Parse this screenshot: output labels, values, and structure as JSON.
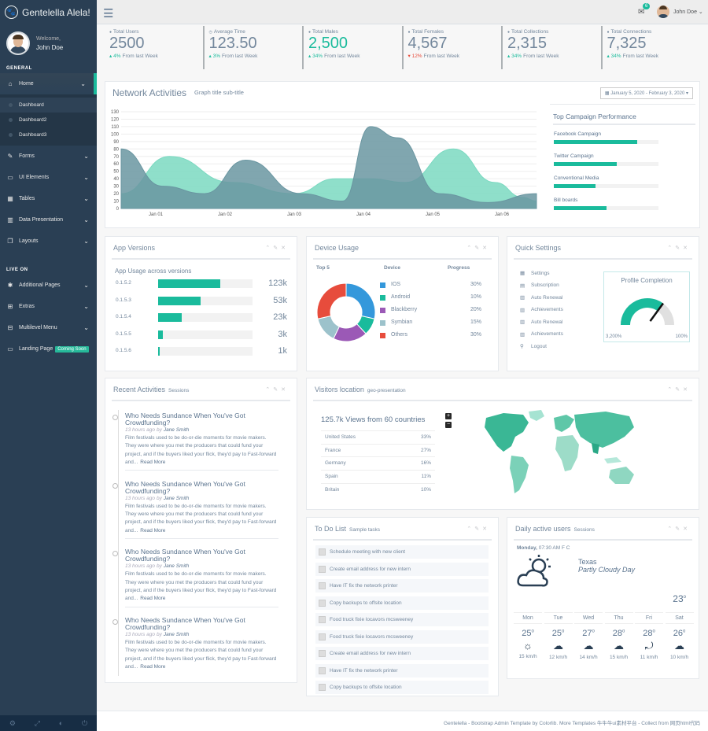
{
  "brand": {
    "title": "Gentelella Alela!"
  },
  "profile": {
    "welcome": "Welcome,",
    "name": "John Doe"
  },
  "nav": {
    "general_label": "GENERAL",
    "items": [
      {
        "label": "Home"
      },
      {
        "label": "Forms"
      },
      {
        "label": "UI Elements"
      },
      {
        "label": "Tables"
      },
      {
        "label": "Data Presentation"
      },
      {
        "label": "Layouts"
      }
    ],
    "home_sub": [
      "Dashboard",
      "Dashboard2",
      "Dashboard3"
    ],
    "live_label": "LIVE ON",
    "live_items": [
      {
        "label": "Additional Pages"
      },
      {
        "label": "Extras"
      },
      {
        "label": "Multilevel Menu"
      },
      {
        "label": "Landing Page"
      }
    ],
    "coming_soon": "Coming Soon"
  },
  "topbar": {
    "mail_count": "6",
    "user": "John Doe"
  },
  "stats": [
    {
      "label": "Total Users",
      "value": "2500",
      "change": "4%",
      "note": "From last Week",
      "dir": "up"
    },
    {
      "label": "Average Time",
      "value": "123.50",
      "change": "3%",
      "note": "From last Week",
      "dir": "up"
    },
    {
      "label": "Total Males",
      "value": "2,500",
      "change": "34%",
      "note": "From last Week",
      "dir": "up"
    },
    {
      "label": "Total Females",
      "value": "4,567",
      "change": "12%",
      "note": "From last Week",
      "dir": "down"
    },
    {
      "label": "Total Collections",
      "value": "2,315",
      "change": "34%",
      "note": "From last Week",
      "dir": "up"
    },
    {
      "label": "Total Connections",
      "value": "7,325",
      "change": "34%",
      "note": "From last Week",
      "dir": "up"
    }
  ],
  "network": {
    "title": "Network Activities",
    "subtitle": "Graph title sub-title",
    "date_range": "January 5, 2020 - February 3, 2020"
  },
  "chart_data": [
    {
      "type": "area",
      "x": [
        "Jan 01",
        "Jan 02",
        "Jan 03",
        "Jan 04",
        "Jan 05",
        "Jan 06"
      ],
      "yticks": [
        0,
        10,
        20,
        30,
        40,
        50,
        60,
        70,
        80,
        90,
        100,
        110,
        120,
        130
      ],
      "ylim": [
        0,
        130
      ],
      "series": [
        {
          "points": [
            [
              0,
              20
            ],
            [
              0.7,
              70
            ],
            [
              1.6,
              35
            ],
            [
              2.5,
              20
            ],
            [
              3.1,
              40
            ],
            [
              3.6,
              40
            ],
            [
              4.1,
              35
            ],
            [
              4.8,
              80
            ],
            [
              5.4,
              35
            ],
            [
              5.8,
              15
            ],
            [
              6.0,
              10
            ]
          ],
          "color": "#7bd9c1"
        },
        {
          "points": [
            [
              0,
              80
            ],
            [
              0.6,
              30
            ],
            [
              1.2,
              20
            ],
            [
              1.8,
              65
            ],
            [
              2.6,
              20
            ],
            [
              3.2,
              10
            ],
            [
              3.6,
              110
            ],
            [
              4.0,
              95
            ],
            [
              4.6,
              20
            ],
            [
              5.3,
              8
            ],
            [
              6.0,
              20
            ]
          ],
          "color": "#6a96a1"
        }
      ]
    },
    {
      "type": "bar",
      "title": "App Usage across versions",
      "categories": [
        "0.1.5.2",
        "0.1.5.3",
        "0.1.5.4",
        "0.1.5.5",
        "0.1.5.6"
      ],
      "values": [
        123,
        53,
        23,
        3,
        1
      ],
      "labels": [
        "123k",
        "53k",
        "23k",
        "3k",
        "1k"
      ],
      "fill_pct": [
        66,
        45,
        25,
        5,
        2
      ]
    },
    {
      "type": "pie",
      "title": "Top 5",
      "categories": [
        "IOS",
        "Android",
        "Blackberry",
        "Symbian",
        "Others"
      ],
      "values": [
        30,
        10,
        20,
        15,
        30
      ],
      "colors": [
        "#3498db",
        "#1abb9c",
        "#9b59b6",
        "#9cc2cb",
        "#e74c3c"
      ]
    }
  ],
  "campaign": {
    "title": "Top Campaign Performance",
    "items": [
      {
        "label": "Facebook Campaign",
        "pct": 80
      },
      {
        "label": "Twitter Campaign",
        "pct": 60
      },
      {
        "label": "Conventional Media",
        "pct": 40
      },
      {
        "label": "Bill boards",
        "pct": 50
      }
    ]
  },
  "app_versions": {
    "title": "App Versions"
  },
  "device": {
    "title": "Device Usage",
    "h_top": "Top 5",
    "h_device": "Device",
    "h_progress": "Progress",
    "pcts": [
      "30%",
      "10%",
      "20%",
      "15%",
      "30%"
    ]
  },
  "quick": {
    "title": "Quick Settings",
    "items": [
      "Settings",
      "Subscription",
      "Auto Renewal",
      "Achievements",
      "Auto Renewal",
      "Achievements",
      "Logout"
    ],
    "profile_title": "Profile Completion",
    "gauge_min": "3,200%",
    "gauge_max": "100%",
    "gauge_value": 0.7
  },
  "recent": {
    "title": "Recent Activities",
    "subtitle": "Sessions",
    "items": [
      {
        "title": "Who Needs Sundance When You've Got Crowdfunding?",
        "time": "13 hours ago",
        "by": "by",
        "author": "Jane Smith",
        "text": "Film festivals used to be do-or-die moments for movie makers. They were where you met the producers that could fund your project, and if the buyers liked your flick, they'd pay to Fast-forward and...",
        "more": "Read More"
      },
      {
        "title": "Who Needs Sundance When You've Got Crowdfunding?",
        "time": "13 hours ago",
        "by": "by",
        "author": "Jane Smith",
        "text": "Film festivals used to be do-or-die moments for movie makers. They were where you met the producers that could fund your project, and if the buyers liked your flick, they'd pay to Fast-forward and...",
        "more": "Read More"
      },
      {
        "title": "Who Needs Sundance When You've Got Crowdfunding?",
        "time": "13 hours ago",
        "by": "by",
        "author": "Jane Smith",
        "text": "Film festivals used to be do-or-die moments for movie makers. They were where you met the producers that could fund your project, and if the buyers liked your flick, they'd pay to Fast-forward and...",
        "more": "Read More"
      },
      {
        "title": "Who Needs Sundance When You've Got Crowdfunding?",
        "time": "13 hours ago",
        "by": "by",
        "author": "Jane Smith",
        "text": "Film festivals used to be do-or-die moments for movie makers. They were where you met the producers that could fund your project, and if the buyers liked your flick, they'd pay to Fast-forward and...",
        "more": "Read More"
      }
    ]
  },
  "visitors": {
    "title": "Visitors location",
    "subtitle": "geo-presentation",
    "headline": "125.7k Views from 60 countries",
    "rows": [
      {
        "country": "United States",
        "pct": "33%"
      },
      {
        "country": "France",
        "pct": "27%"
      },
      {
        "country": "Germany",
        "pct": "16%"
      },
      {
        "country": "Spain",
        "pct": "11%"
      },
      {
        "country": "Britain",
        "pct": "10%"
      }
    ]
  },
  "todo": {
    "title": "To Do List",
    "subtitle": "Sample tasks",
    "items": [
      "Schedule meeting with new client",
      "Create email address for new intern",
      "Have IT fix the network printer",
      "Copy backups to offsite location",
      "Food truck fixie locavors mcsweeney",
      "Food truck fixie locavors mcsweeney",
      "Create email address for new intern",
      "Have IT fix the network printer",
      "Copy backups to offsite location"
    ]
  },
  "weather": {
    "title": "Daily active users",
    "subtitle": "Sessions",
    "day": "Monday,",
    "time": "07:30 AM",
    "unit": "F C",
    "city": "Texas",
    "cond": "Partly Cloudy Day",
    "temp": "23",
    "days": [
      {
        "d": "Mon",
        "t": "25",
        "w": "15 km/h"
      },
      {
        "d": "Tue",
        "t": "25",
        "w": "12 km/h"
      },
      {
        "d": "Wed",
        "t": "27",
        "w": "14 km/h"
      },
      {
        "d": "Thu",
        "t": "28",
        "w": "15 km/h"
      },
      {
        "d": "Fri",
        "t": "28",
        "w": "11 km/h"
      },
      {
        "d": "Sat",
        "t": "26",
        "w": "10 km/h"
      }
    ]
  },
  "footer": {
    "text": "Gentelella - Bootstrap Admin Template by Colorlib. More Templates 牛牛牛ui素材平台 - Collect from 网页html代码"
  }
}
